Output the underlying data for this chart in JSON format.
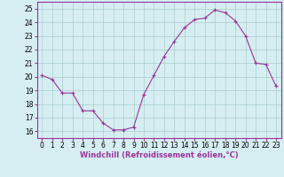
{
  "x": [
    0,
    1,
    2,
    3,
    4,
    5,
    6,
    7,
    8,
    9,
    10,
    11,
    12,
    13,
    14,
    15,
    16,
    17,
    18,
    19,
    20,
    21,
    22,
    23
  ],
  "y": [
    20.1,
    19.8,
    18.8,
    18.8,
    17.5,
    17.5,
    16.6,
    16.1,
    16.1,
    16.3,
    18.7,
    20.1,
    21.5,
    22.6,
    23.6,
    24.2,
    24.3,
    24.9,
    24.7,
    24.1,
    23.0,
    21.0,
    20.9,
    19.3
  ],
  "line_color": "#993399",
  "marker": "+",
  "marker_size": 3,
  "bg_color": "#d6eef2",
  "grid_color": "#aacccc",
  "xlabel": "Windchill (Refroidissement éolien,°C)",
  "ylabel": "",
  "xlim": [
    -0.5,
    23.5
  ],
  "ylim": [
    15.5,
    25.5
  ],
  "xticks": [
    0,
    1,
    2,
    3,
    4,
    5,
    6,
    7,
    8,
    9,
    10,
    11,
    12,
    13,
    14,
    15,
    16,
    17,
    18,
    19,
    20,
    21,
    22,
    23
  ],
  "yticks": [
    16,
    17,
    18,
    19,
    20,
    21,
    22,
    23,
    24,
    25
  ],
  "tick_fontsize": 5.5,
  "xlabel_fontsize": 6.0,
  "spine_color": "#993399"
}
